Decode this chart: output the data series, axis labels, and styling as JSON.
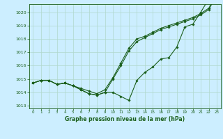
{
  "title": "Graphe pression niveau de la mer (hPa)",
  "bg_color": "#cceeff",
  "grid_color": "#b0d8cc",
  "line_color": "#1a5e1a",
  "marker": "D",
  "markersize": 1.8,
  "linewidth": 0.8,
  "hours": [
    0,
    1,
    2,
    3,
    4,
    5,
    6,
    7,
    8,
    9,
    10,
    11,
    12,
    13,
    14,
    15,
    16,
    17,
    18,
    19,
    20,
    21,
    22,
    23
  ],
  "series1": [
    1014.7,
    1014.9,
    1014.9,
    1014.6,
    1014.7,
    1014.5,
    1014.2,
    1013.9,
    1013.8,
    1014.0,
    1014.0,
    1013.7,
    1013.4,
    1014.9,
    1015.5,
    1015.9,
    1016.5,
    1016.6,
    1017.4,
    1018.9,
    1019.1,
    1020.0,
    1021.0,
    1021.3
  ],
  "series2": [
    1014.7,
    1014.9,
    1014.9,
    1014.6,
    1014.7,
    1014.5,
    1014.2,
    1013.9,
    1013.8,
    1014.0,
    1015.0,
    1016.0,
    1017.1,
    1017.8,
    1018.1,
    1018.4,
    1018.7,
    1018.9,
    1019.1,
    1019.3,
    1019.5,
    1019.8,
    1020.2,
    1021.3
  ],
  "series3": [
    1014.7,
    1014.9,
    1014.9,
    1014.6,
    1014.7,
    1014.5,
    1014.3,
    1014.1,
    1013.9,
    1014.2,
    1015.1,
    1016.2,
    1017.3,
    1018.0,
    1018.2,
    1018.5,
    1018.8,
    1019.0,
    1019.2,
    1019.4,
    1019.6,
    1019.9,
    1020.3,
    1021.3
  ],
  "ylim": [
    1012.8,
    1020.6
  ],
  "yticks": [
    1013,
    1014,
    1015,
    1016,
    1017,
    1018,
    1019,
    1020
  ],
  "xlim": [
    -0.5,
    23.5
  ],
  "xticks": [
    0,
    1,
    2,
    3,
    4,
    5,
    6,
    7,
    8,
    9,
    10,
    11,
    12,
    13,
    14,
    15,
    16,
    17,
    18,
    19,
    20,
    21,
    22,
    23
  ]
}
